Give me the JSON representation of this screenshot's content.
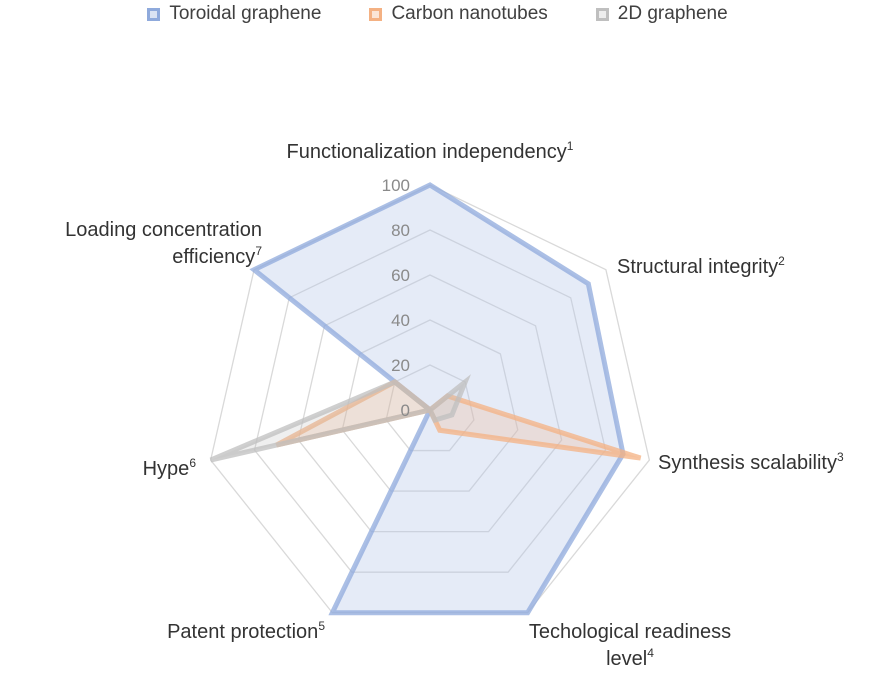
{
  "legend": [
    {
      "name": "Toroidal graphene",
      "color": "#8faadc"
    },
    {
      "name": "Carbon nanotubes",
      "color": "#f4b183"
    },
    {
      "name": "2D graphene",
      "color": "#bfbfbf"
    }
  ],
  "chart_data": {
    "type": "radar",
    "categories": [
      "Functionalization independency",
      "Structural integrity",
      "Synthesis scalability",
      "Techological readiness level",
      "Patent protection",
      "Hype",
      "Loading concentration efficiency"
    ],
    "category_superscripts": [
      "1",
      "2",
      "3",
      "4",
      "5",
      "6",
      "7"
    ],
    "ticks": [
      "0",
      "20",
      "40",
      "60",
      "80",
      "100"
    ],
    "rlim": [
      0,
      100
    ],
    "grid": true,
    "legend_position": "top",
    "series": [
      {
        "name": "Toroidal graphene",
        "color": "#8faadc",
        "values": [
          100,
          90,
          88,
          100,
          100,
          0,
          100
        ]
      },
      {
        "name": "Carbon nanotubes",
        "color": "#f4b183",
        "values": [
          0,
          10,
          96,
          10,
          0,
          70,
          20
        ]
      },
      {
        "name": "2D graphene",
        "color": "#bfbfbf",
        "values": [
          0,
          20,
          10,
          5,
          0,
          100,
          20
        ]
      }
    ]
  }
}
